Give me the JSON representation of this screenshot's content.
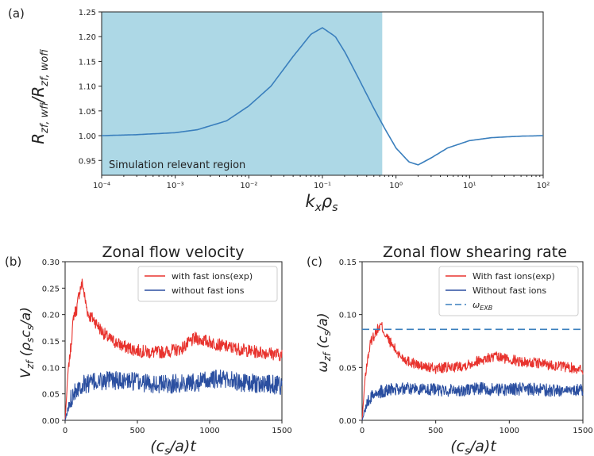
{
  "panel_labels": [
    "(a)",
    "(b)",
    "(c)"
  ],
  "chart_data": [
    {
      "type": "line",
      "panel": "(a)",
      "title": "",
      "xlabel": "k_x ρ_s",
      "ylabel": "R_zf,wfi / R_zf,wofi",
      "xscale": "log",
      "xlim": [
        0.0001,
        100
      ],
      "ylim": [
        0.92,
        1.25
      ],
      "x_tick_labels": [
        "10⁻⁴",
        "10⁻³",
        "10⁻²",
        "10⁻¹",
        "10⁰",
        "10¹",
        "10²"
      ],
      "y_ticks": [
        0.95,
        1.0,
        1.05,
        1.1,
        1.15,
        1.2,
        1.25
      ],
      "y_tick_labels": [
        "0.95",
        "1.00",
        "1.05",
        "1.10",
        "1.15",
        "1.20",
        "1.25"
      ],
      "shaded_region": {
        "x_from": 0.0001,
        "x_to": 0.65,
        "label": "Simulation relevant region",
        "color": "#add8e6"
      },
      "series": [
        {
          "color": "#3a7fbd",
          "x": [
            0.0001,
            0.0003,
            0.001,
            0.002,
            0.005,
            0.01,
            0.02,
            0.04,
            0.07,
            0.1,
            0.15,
            0.2,
            0.3,
            0.5,
            0.7,
            1.0,
            1.5,
            2.0,
            3.0,
            5.0,
            10,
            20,
            50,
            100
          ],
          "values": [
            1.0,
            1.002,
            1.006,
            1.012,
            1.03,
            1.06,
            1.1,
            1.16,
            1.205,
            1.218,
            1.2,
            1.17,
            1.12,
            1.055,
            1.015,
            0.975,
            0.947,
            0.941,
            0.955,
            0.975,
            0.99,
            0.996,
            0.999,
            1.0
          ]
        }
      ]
    },
    {
      "type": "line",
      "panel": "(b)",
      "title": "Zonal flow velocity",
      "xlabel": "(c_s/a)t",
      "ylabel": "V_zf (ρ_s c_s/a)",
      "xlim": [
        0,
        1500
      ],
      "ylim": [
        0,
        0.3
      ],
      "x_ticks": [
        0,
        500,
        1000,
        1500
      ],
      "y_ticks": [
        0.0,
        0.05,
        0.1,
        0.15,
        0.2,
        0.25,
        0.3
      ],
      "y_tick_labels": [
        "0.00",
        "0.05",
        "0.10",
        "0.15",
        "0.20",
        "0.25",
        "0.30"
      ],
      "legend": "top-right",
      "series": [
        {
          "name": "with fast ions(exp)",
          "color": "#e8332e",
          "x": [
            0,
            20,
            40,
            60,
            80,
            100,
            120,
            140,
            160,
            200,
            250,
            300,
            400,
            500,
            600,
            700,
            800,
            900,
            1000,
            1100,
            1200,
            1300,
            1400,
            1500
          ],
          "values": [
            0.0,
            0.09,
            0.14,
            0.2,
            0.21,
            0.245,
            0.26,
            0.225,
            0.2,
            0.19,
            0.17,
            0.155,
            0.14,
            0.132,
            0.128,
            0.13,
            0.135,
            0.155,
            0.148,
            0.14,
            0.135,
            0.13,
            0.128,
            0.123
          ]
        },
        {
          "name": "without fast ions",
          "color": "#2b4fa0",
          "x": [
            0,
            20,
            40,
            60,
            100,
            150,
            200,
            300,
            400,
            500,
            600,
            700,
            800,
            900,
            1000,
            1100,
            1200,
            1300,
            1400,
            1500
          ],
          "values": [
            0.0,
            0.02,
            0.04,
            0.055,
            0.065,
            0.07,
            0.072,
            0.075,
            0.075,
            0.073,
            0.07,
            0.068,
            0.07,
            0.072,
            0.075,
            0.08,
            0.072,
            0.07,
            0.068,
            0.066
          ]
        }
      ]
    },
    {
      "type": "line",
      "panel": "(c)",
      "title": "Zonal flow shearing rate",
      "xlabel": "(c_s/a)t",
      "ylabel": "ω_zf (c_s/a)",
      "xlim": [
        0,
        1500
      ],
      "ylim": [
        0,
        0.15
      ],
      "x_ticks": [
        0,
        500,
        1000,
        1500
      ],
      "y_ticks": [
        0.0,
        0.05,
        0.1,
        0.15
      ],
      "y_tick_labels": [
        "0.00",
        "0.05",
        "0.10",
        "0.15"
      ],
      "legend": "top-right",
      "series": [
        {
          "name": "With fast ions(exp)",
          "color": "#e8332e",
          "x": [
            0,
            20,
            40,
            60,
            80,
            100,
            130,
            160,
            200,
            250,
            300,
            400,
            500,
            600,
            700,
            800,
            900,
            1000,
            1100,
            1200,
            1300,
            1400,
            1500
          ],
          "values": [
            0.0,
            0.04,
            0.06,
            0.075,
            0.08,
            0.085,
            0.09,
            0.08,
            0.072,
            0.062,
            0.057,
            0.051,
            0.049,
            0.05,
            0.052,
            0.057,
            0.06,
            0.058,
            0.055,
            0.054,
            0.052,
            0.05,
            0.048
          ]
        },
        {
          "name": "Without fast ions",
          "color": "#2b4fa0",
          "x": [
            0,
            20,
            40,
            60,
            100,
            150,
            200,
            300,
            400,
            500,
            600,
            700,
            800,
            900,
            1000,
            1100,
            1200,
            1300,
            1400,
            1500
          ],
          "values": [
            0.0,
            0.01,
            0.018,
            0.022,
            0.026,
            0.028,
            0.029,
            0.03,
            0.03,
            0.029,
            0.028,
            0.029,
            0.03,
            0.029,
            0.029,
            0.03,
            0.029,
            0.028,
            0.029,
            0.028
          ]
        },
        {
          "name": "ω_EXB",
          "color": "#3a7fbd",
          "dashed": true,
          "x": [
            0,
            1500
          ],
          "values": [
            0.086,
            0.086
          ]
        }
      ]
    }
  ]
}
